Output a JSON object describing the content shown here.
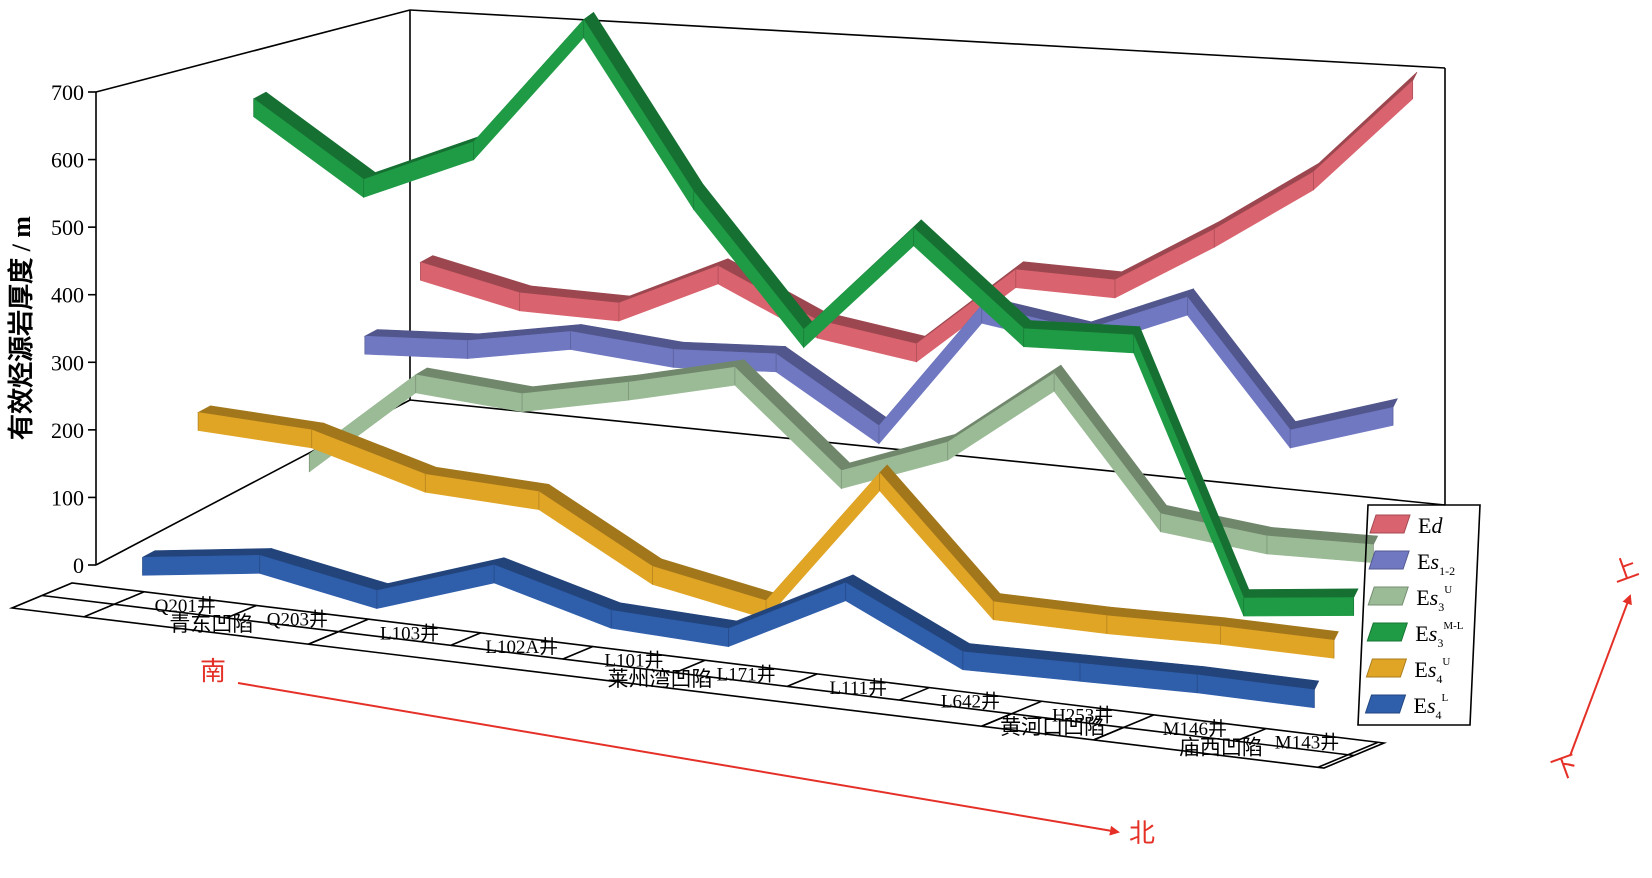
{
  "chart_data": {
    "type": "line",
    "rendering": "3d-ribbon",
    "ylabel": "有效烃源岩厚度 / m",
    "ylim": [
      0,
      700
    ],
    "yticks": [
      0,
      100,
      200,
      300,
      400,
      500,
      600,
      700
    ],
    "categories": [
      "Q201井",
      "Q203井",
      "L103井",
      "L102A井",
      "L101井",
      "L171井",
      "L111井",
      "L642井",
      "H253井",
      "M146井",
      "M143井"
    ],
    "basins": [
      {
        "name": "青东凹陷",
        "wells": [
          "Q201井",
          "Q203井"
        ]
      },
      {
        "name": "莱州湾凹陷",
        "wells": [
          "L103井",
          "L102A井",
          "L101井",
          "L171井",
          "L111井",
          "L642井"
        ]
      },
      {
        "name": "黄河口凹陷",
        "wells": [
          "H253井"
        ]
      },
      {
        "name": "庙西凹陷",
        "wells": [
          "M146井",
          "M143井"
        ]
      }
    ],
    "direction": {
      "start": "南",
      "end": "北",
      "up": "上",
      "down": "下"
    },
    "series": [
      {
        "name": "Ed",
        "color": "#d9636e",
        "values": [
          220,
          190,
          190,
          260,
          195,
          175,
          300,
          300,
          390,
          490,
          640
        ]
      },
      {
        "name": "Es1-2",
        "color": "#7078c2",
        "values": [
          155,
          165,
          195,
          185,
          195,
          105,
          300,
          280,
          345,
          165,
          215
        ]
      },
      {
        "name": "Es3U",
        "color": "#9bbb96",
        "values": [
          25,
          160,
          150,
          185,
          225,
          90,
          150,
          270,
          80,
          65,
          70
        ]
      },
      {
        "name": "Es3M-L",
        "color": "#1f9b45",
        "values": [
          595,
          495,
          570,
          770,
          535,
          350,
          520,
          390,
          400,
          30,
          50
        ]
      },
      {
        "name": "Es4U",
        "color": "#e1a526",
        "values": [
          175,
          170,
          125,
          120,
          30,
          0,
          210,
          40,
          40,
          45,
          45
        ]
      },
      {
        "name": "Es4L",
        "color": "#2f5eab",
        "values": [
          5,
          30,
          0,
          60,
          15,
          10,
          100,
          20,
          25,
          30,
          30
        ]
      }
    ]
  },
  "legend_items": [
    {
      "base": "Ed",
      "ital": "",
      "sub": "",
      "sup": ""
    },
    {
      "base": "E",
      "ital": "s",
      "sub": "1-2",
      "sup": ""
    },
    {
      "base": "E",
      "ital": "s",
      "sub": "3",
      "sup": "U"
    },
    {
      "base": "E",
      "ital": "s",
      "sub": "3",
      "sup": "M-L"
    },
    {
      "base": "E",
      "ital": "s",
      "sub": "4",
      "sup": "U"
    },
    {
      "base": "E",
      "ital": "s",
      "sub": "4",
      "sup": "L"
    }
  ]
}
